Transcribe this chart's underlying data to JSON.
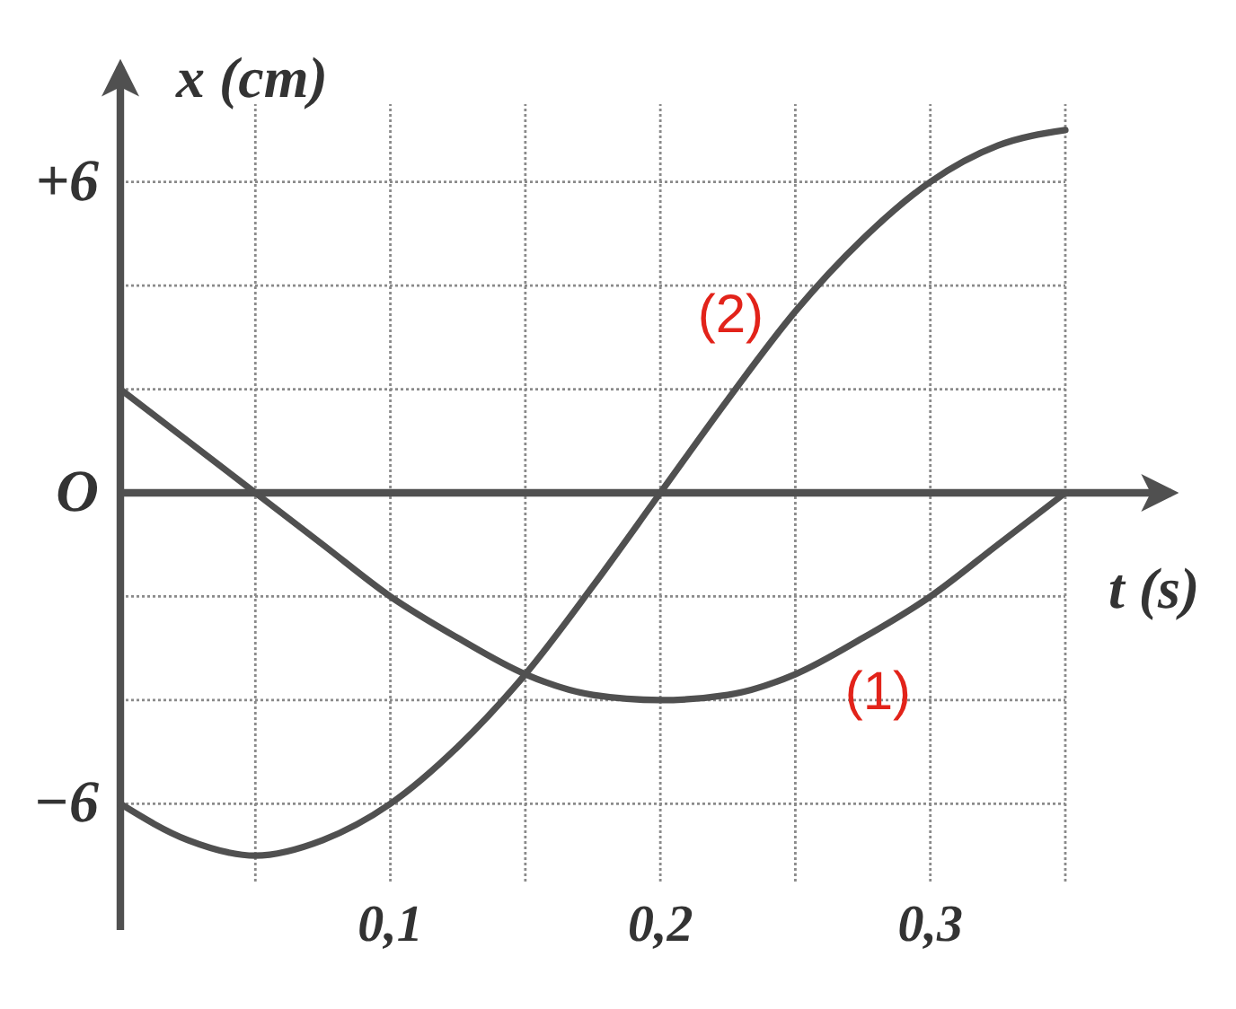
{
  "chart_data": {
    "type": "line",
    "xlabel": "t (s)",
    "ylabel": "x (cm)",
    "x": [
      0,
      0.025,
      0.05,
      0.075,
      0.1,
      0.125,
      0.15,
      0.175,
      0.2,
      0.225,
      0.25,
      0.275,
      0.3,
      0.325,
      0.35
    ],
    "series": [
      {
        "name": "(1)",
        "color": "#505050",
        "values": [
          2,
          1,
          0,
          -1,
          -2,
          -2.8,
          -3.5,
          -3.9,
          -4,
          -3.9,
          -3.5,
          -2.8,
          -2,
          -1,
          0
        ]
      },
      {
        "name": "(2)",
        "color": "#505050",
        "values": [
          -6,
          -6.7,
          -7,
          -6.7,
          -6,
          -4.9,
          -3.5,
          -1.8,
          0,
          1.8,
          3.5,
          4.9,
          6,
          6.7,
          7
        ]
      }
    ],
    "xlim": [
      0,
      0.35
    ],
    "ylim": [
      -7.5,
      7.5
    ],
    "xticks": [
      {
        "value": 0.05,
        "label": null
      },
      {
        "value": 0.1,
        "label": "0,1"
      },
      {
        "value": 0.15,
        "label": null
      },
      {
        "value": 0.2,
        "label": "0,2"
      },
      {
        "value": 0.25,
        "label": null
      },
      {
        "value": 0.3,
        "label": "0,3"
      },
      {
        "value": 0.35,
        "label": null
      }
    ],
    "yticks": [
      {
        "value": -6,
        "label": "−6"
      },
      {
        "value": -4,
        "label": null
      },
      {
        "value": -2,
        "label": null
      },
      {
        "value": 0,
        "label": "O"
      },
      {
        "value": 2,
        "label": null
      },
      {
        "value": 4,
        "label": null
      },
      {
        "value": 6,
        "label": "+6"
      }
    ],
    "grid": true
  }
}
